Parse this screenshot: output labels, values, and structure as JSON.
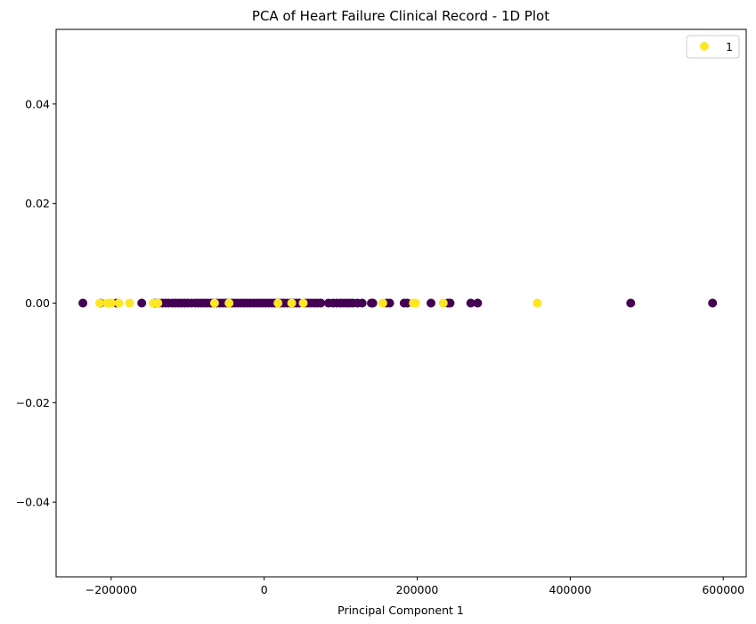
{
  "chart_data": {
    "type": "scatter",
    "title": "PCA of Heart Failure Clinical Record - 1D Plot",
    "xlabel": "Principal Component 1",
    "ylabel": "",
    "xlim": [
      -272000,
      630000
    ],
    "ylim": [
      -0.055,
      0.055
    ],
    "xticks": [
      -200000,
      0,
      200000,
      400000,
      600000
    ],
    "xtick_labels": [
      "−200000",
      "0",
      "200000",
      "400000",
      "600000"
    ],
    "yticks": [
      -0.04,
      -0.02,
      0.0,
      0.02,
      0.04
    ],
    "ytick_labels": [
      "−0.04",
      "−0.02",
      "0.00",
      "0.02",
      "0.04"
    ],
    "grid": false,
    "legend": {
      "placement": "top-right",
      "entries": [
        {
          "label": "1",
          "color": "#fde725"
        }
      ]
    },
    "colors": {
      "class_0": "#440154",
      "class_1": "#fde725"
    },
    "series": [
      {
        "class": 0,
        "x": [
          -237000,
          -214000,
          -193000,
          -160000,
          -143000,
          -138000,
          -133000,
          -129000,
          -125000,
          -120000,
          -116000,
          -112000,
          -108000,
          -104000,
          -100000,
          -95000,
          -90000,
          -86000,
          -82000,
          -78000,
          -74000,
          -70000,
          -66000,
          -62000,
          -58000,
          -54000,
          -50000,
          -46000,
          -42000,
          -38000,
          -34000,
          -30000,
          -26000,
          -22000,
          -18000,
          -14000,
          -10000,
          -6000,
          -2000,
          2000,
          6000,
          10000,
          14000,
          18000,
          22000,
          26000,
          30000,
          34000,
          38000,
          42000,
          46000,
          54000,
          58000,
          62000,
          66000,
          70000,
          74000,
          84000,
          90000,
          95000,
          100000,
          104000,
          108000,
          112000,
          116000,
          122000,
          128000,
          140000,
          142000,
          160000,
          164000,
          183000,
          187000,
          218000,
          240000,
          243000,
          270000,
          279000,
          479000,
          586000
        ],
        "y": [
          0,
          0,
          0,
          0,
          0,
          0,
          0,
          0,
          0,
          0,
          0,
          0,
          0,
          0,
          0,
          0,
          0,
          0,
          0,
          0,
          0,
          0,
          0,
          0,
          0,
          0,
          0,
          0,
          0,
          0,
          0,
          0,
          0,
          0,
          0,
          0,
          0,
          0,
          0,
          0,
          0,
          0,
          0,
          0,
          0,
          0,
          0,
          0,
          0,
          0,
          0,
          0,
          0,
          0,
          0,
          0,
          0,
          0,
          0,
          0,
          0,
          0,
          0,
          0,
          0,
          0,
          0,
          0,
          0,
          0,
          0,
          0,
          0,
          0,
          0,
          0,
          0,
          0,
          0,
          0
        ]
      },
      {
        "class": 1,
        "name": "1",
        "x": [
          -215000,
          -205000,
          -200000,
          -190000,
          -176000,
          -145000,
          -139000,
          -65000,
          -46000,
          18000,
          36000,
          51000,
          155000,
          195000,
          198000,
          234000,
          357000
        ],
        "y": [
          0,
          0,
          0,
          0,
          0,
          0,
          0,
          0,
          0,
          0,
          0,
          0,
          0,
          0,
          0,
          0,
          0
        ]
      }
    ]
  }
}
